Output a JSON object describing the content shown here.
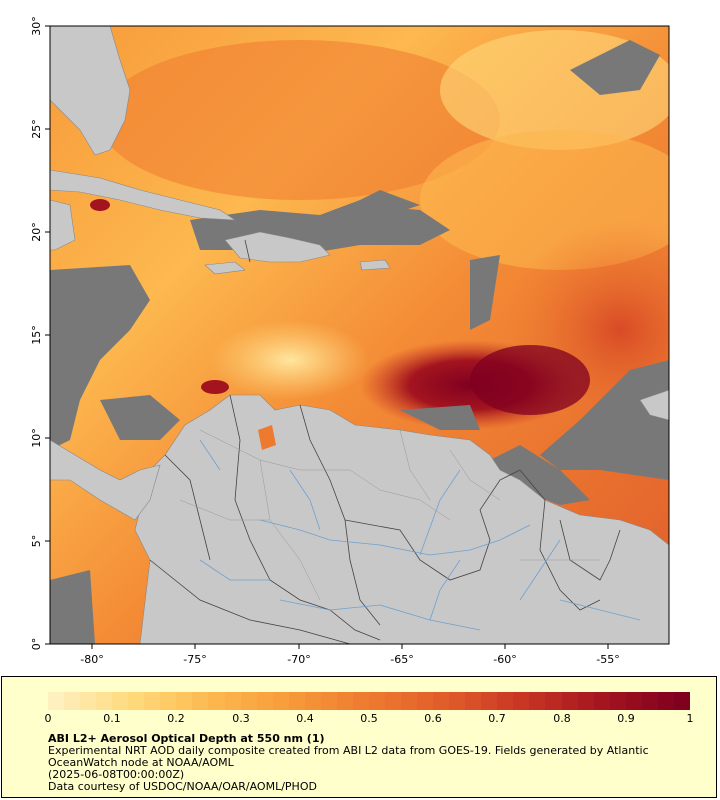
{
  "map": {
    "lon_ticks": [
      "-80°",
      "-75°",
      "-70°",
      "-65°",
      "-60°",
      "-55°"
    ],
    "lat_ticks": [
      "0°",
      "5°",
      "10°",
      "15°",
      "20°",
      "25°",
      "30°"
    ],
    "extent": {
      "lon": [
        -82.2,
        -52.2
      ],
      "lat": [
        0,
        30
      ]
    }
  },
  "colorbar": {
    "ticks": [
      "0",
      "0.1",
      "0.2",
      "0.3",
      "0.4",
      "0.5",
      "0.6",
      "0.7",
      "0.8",
      "0.9",
      "1"
    ],
    "range": [
      0,
      1
    ],
    "colors": [
      "#fff0c0",
      "#ffd97a",
      "#fdb84f",
      "#f79a3a",
      "#ee7a30",
      "#e05c2a",
      "#c83424",
      "#a3141f",
      "#800020"
    ]
  },
  "legend": {
    "title": "ABI L2+ Aerosol Optical Depth at 550 nm (1)",
    "line1": "Experimental NRT AOD daily composite created from ABI L2 data from GOES-19. Fields generated by Atlantic",
    "line2": "OceanWatch node at NOAA/AOML",
    "line3": "(2025-06-08T00:00:00Z)",
    "line4": "Data courtesy of USDOC/NOAA/OAR/AOML/PHOD"
  },
  "colors": {
    "land": "#c8c8c8",
    "no_data": "#787878",
    "rivers": "#6fa0d0",
    "legend_bg": "#ffffcc"
  }
}
